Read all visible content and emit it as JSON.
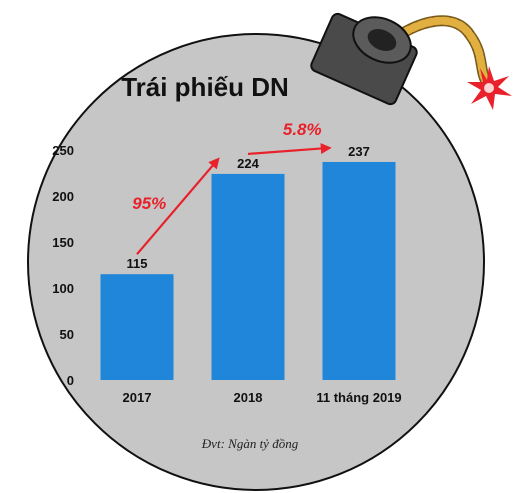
{
  "colors": {
    "background": "#ffffff",
    "bomb_body": "#c6c6c6",
    "bomb_outline": "#111111",
    "cap": "#4a4a4a",
    "fuse": "#e1b040",
    "spark": "#e8212a",
    "bar": "#1f86d9",
    "arrow": "#e8212a",
    "text": "#111111"
  },
  "icons": {
    "bomb": "bomb-icon",
    "fuse": "fuse-icon",
    "spark": "spark-icon"
  },
  "chart_data": {
    "type": "bar",
    "title": "Trái phiếu DN",
    "categories": [
      "2017",
      "2018",
      "11 tháng 2019"
    ],
    "values": [
      115,
      224,
      237
    ],
    "value_labels": [
      "115",
      "224",
      "237"
    ],
    "yticks": [
      0,
      50,
      100,
      150,
      200,
      250
    ],
    "ylim": [
      0,
      250
    ],
    "grid": false,
    "legend": "none",
    "growth_annotations": [
      {
        "from": "2017",
        "to": "2018",
        "label": "95%"
      },
      {
        "from": "2018",
        "to": "11 tháng 2019",
        "label": "5.8%"
      }
    ],
    "note": "Đvt: Ngàn tỷ đồng"
  }
}
